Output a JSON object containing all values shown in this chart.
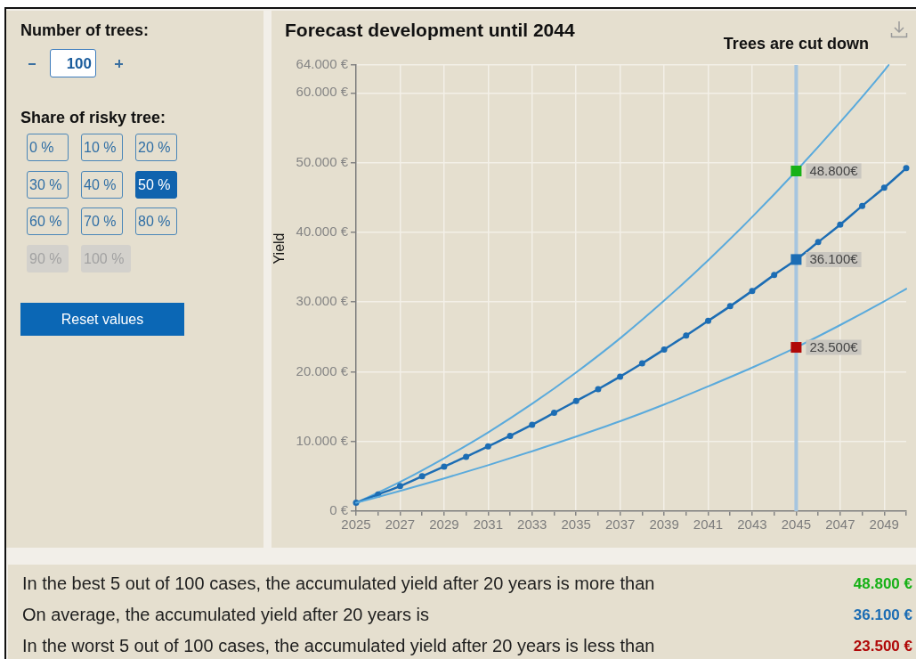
{
  "chart_data": {
    "type": "line",
    "title": "Forecast development until 2044",
    "ylabel": "Yield",
    "x": [
      2025,
      2026,
      2027,
      2028,
      2029,
      2030,
      2031,
      2032,
      2033,
      2034,
      2035,
      2036,
      2037,
      2038,
      2039,
      2040,
      2041,
      2042,
      2043,
      2044,
      2045,
      2046,
      2047,
      2048,
      2049,
      2050
    ],
    "xlim": [
      2025,
      2050
    ],
    "xticks": [
      2025,
      {
        "value": 2026,
        "label": null
      },
      2027,
      {
        "value": 2028,
        "label": null
      },
      2029,
      {
        "value": 2030,
        "label": null
      },
      2031,
      {
        "value": 2032,
        "label": null
      },
      2033,
      {
        "value": 2034,
        "label": null
      },
      2035,
      {
        "value": 2036,
        "label": null
      },
      2037,
      {
        "value": 2038,
        "label": null
      },
      2039,
      {
        "value": 2040,
        "label": null
      },
      2041,
      {
        "value": 2042,
        "label": null
      },
      2043,
      {
        "value": 2044,
        "label": null
      },
      2045,
      {
        "value": 2046,
        "label": null
      },
      2047,
      {
        "value": 2048,
        "label": null
      },
      2049,
      {
        "value": 2050,
        "label": null
      }
    ],
    "ylim": [
      0,
      64000
    ],
    "yticks": [
      {
        "value": 0,
        "label": "0 €"
      },
      {
        "value": 10000,
        "label": "10.000 €"
      },
      {
        "value": 20000,
        "label": "20.000 €"
      },
      {
        "value": 30000,
        "label": "30.000 €"
      },
      {
        "value": 40000,
        "label": "40.000 €"
      },
      {
        "value": 50000,
        "label": "50.000 €"
      },
      {
        "value": 60000,
        "label": "60.000 €"
      },
      {
        "value": 64000,
        "label": "64.000 €"
      }
    ],
    "grid": true,
    "series": [
      {
        "color": "#5aaadc",
        "marker": "none",
        "x": [
          2025,
          2027,
          2029,
          2031,
          2033,
          2035,
          2037,
          2039,
          2041,
          2043,
          2045,
          2047,
          2049,
          2049.2
        ],
        "values": [
          1200,
          4200,
          7600,
          11300,
          15400,
          19900,
          24800,
          30200,
          36000,
          42200,
          48800,
          55800,
          63200,
          64000
        ]
      },
      {
        "color": "#1c6db4",
        "marker": "circle",
        "values": [
          1200,
          2400,
          3600,
          5000,
          6400,
          7800,
          9300,
          10800,
          12400,
          14100,
          15800,
          17500,
          19300,
          21200,
          23200,
          25200,
          27300,
          29400,
          31600,
          33900,
          36100,
          38600,
          41100,
          43800,
          46400,
          49200
        ]
      },
      {
        "color": "#5aaadc",
        "marker": "none",
        "x": [
          2025,
          2027,
          2029,
          2031,
          2033,
          2035,
          2037,
          2039,
          2041,
          2043,
          2045,
          2047,
          2049,
          2050
        ],
        "values": [
          1200,
          2900,
          4700,
          6600,
          8600,
          10700,
          12900,
          15300,
          17900,
          20600,
          23500,
          26700,
          30100,
          31900
        ]
      },
      {
        "type": "scatter",
        "marker": "square",
        "x": [
          2045,
          2045,
          2045
        ],
        "values": [
          48800,
          36100,
          23500
        ],
        "colors": [
          "#17b117",
          "#1c6db4",
          "#b00808"
        ],
        "value_labels": [
          "48.800€",
          "36.100€",
          "23.500€"
        ]
      }
    ],
    "ref_lines": [
      {
        "axis": "x",
        "value": 2045,
        "label": "Trees are cut down",
        "color": "#a6c5df"
      }
    ],
    "annotations": [
      "Number of trees:",
      "100",
      "Share of risky tree:",
      "0 %",
      "10 %",
      "20 %",
      "30 %",
      "40 %",
      "50 %",
      "60 %",
      "70 %",
      "80 %",
      "90 %",
      "100 %",
      "Reset values",
      "In the best 5 out of 100 cases, the accumulated yield after 20 years is more than",
      "48.800 €",
      "On average, the accumulated yield after 20 years is",
      "36.100 €",
      "In the worst 5 out of 100 cases, the accumulated yield after 20 years is less than",
      "23.500 €"
    ]
  }
}
